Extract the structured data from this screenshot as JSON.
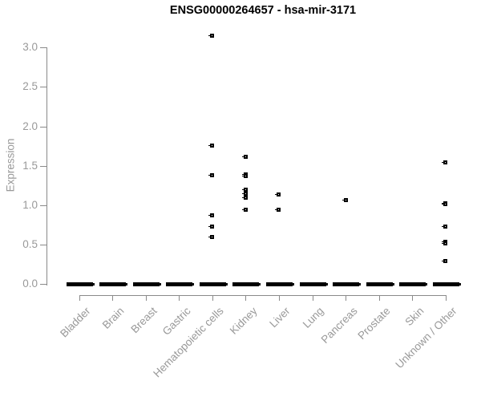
{
  "chart": {
    "title": "ENSG00000264657 - hsa-mir-3171",
    "y_axis_label": "Expression"
  },
  "chart_data": {
    "type": "scatter",
    "title": "ENSG00000264657 - hsa-mir-3171",
    "xlabel": "",
    "ylabel": "Expression",
    "ylim": [
      0.0,
      3.2
    ],
    "y_ticks": [
      0.0,
      0.5,
      1.0,
      1.5,
      2.0,
      2.5,
      3.0
    ],
    "y_tick_labels": [
      "0.0",
      "0.5",
      "1.0",
      "1.5",
      "2.0",
      "2.5",
      "3.0"
    ],
    "grid": false,
    "legend": false,
    "point_marker": "open-square",
    "colors": {
      "points": "#000000",
      "axis": "#8a8a8a",
      "tick_labels": "#999999",
      "title": "#000000",
      "background": "#ffffff"
    },
    "categories": [
      "Bladder",
      "Brain",
      "Breast",
      "Gastric",
      "Hematopoietic cells",
      "Kidney",
      "Liver",
      "Lung",
      "Pancreas",
      "Prostate",
      "Skin",
      "Unknown / Other"
    ],
    "series": [
      {
        "category": "Bladder",
        "zero_cluster": true,
        "nonzero_values": []
      },
      {
        "category": "Brain",
        "zero_cluster": true,
        "nonzero_values": []
      },
      {
        "category": "Breast",
        "zero_cluster": true,
        "nonzero_values": []
      },
      {
        "category": "Gastric",
        "zero_cluster": true,
        "nonzero_values": []
      },
      {
        "category": "Hematopoietic cells",
        "zero_cluster": true,
        "nonzero_values": [
          3.15,
          1.76,
          1.38,
          0.87,
          0.73,
          0.6
        ]
      },
      {
        "category": "Kidney",
        "zero_cluster": true,
        "nonzero_values": [
          1.62,
          1.39,
          1.37,
          1.2,
          1.15,
          1.1,
          0.94
        ]
      },
      {
        "category": "Liver",
        "zero_cluster": true,
        "nonzero_values": [
          1.14,
          0.94
        ]
      },
      {
        "category": "Lung",
        "zero_cluster": true,
        "nonzero_values": []
      },
      {
        "category": "Pancreas",
        "zero_cluster": true,
        "nonzero_values": [
          1.07
        ]
      },
      {
        "category": "Prostate",
        "zero_cluster": true,
        "nonzero_values": []
      },
      {
        "category": "Skin",
        "zero_cluster": true,
        "nonzero_values": []
      },
      {
        "category": "Unknown / Other",
        "zero_cluster": true,
        "nonzero_values": [
          1.54,
          1.03,
          1.01,
          0.73,
          0.54,
          0.52,
          0.29
        ]
      }
    ],
    "zero_cluster_meaning": "thick black dash at y=0 formed by many overlapping points with expression 0"
  }
}
